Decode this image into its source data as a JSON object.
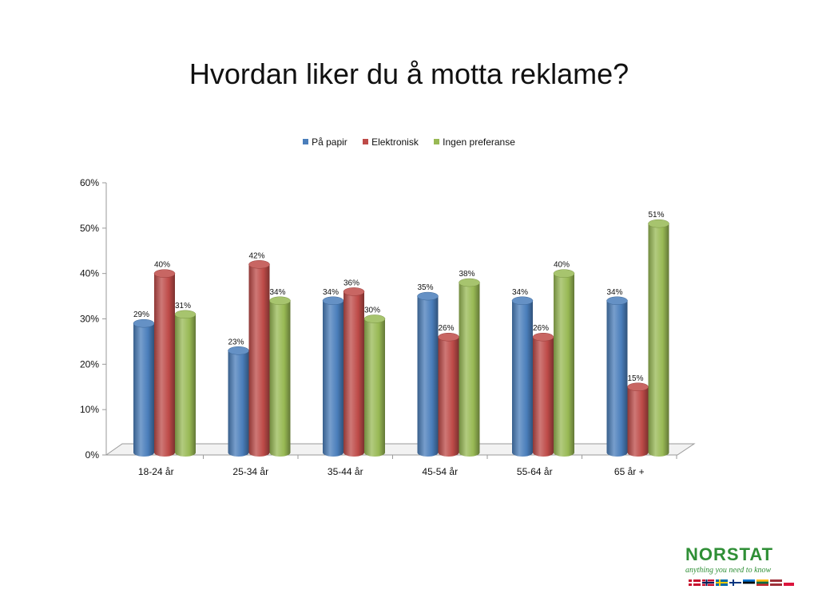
{
  "chart_data": {
    "type": "bar",
    "title": "Hvordan liker du å motta reklame?",
    "categories": [
      "18-24 år",
      "25-34 år",
      "35-44 år",
      "45-54 år",
      "55-64 år",
      "65 år +"
    ],
    "series": [
      {
        "name": "På papir",
        "color": "#4a7ebb",
        "values": [
          29,
          23,
          34,
          35,
          34,
          34
        ],
        "labels": [
          "29%",
          "23%",
          "34%",
          "35%",
          "34%",
          "34%"
        ]
      },
      {
        "name": "Elektronisk",
        "color": "#be4b48",
        "values": [
          40,
          42,
          36,
          26,
          26,
          15
        ],
        "labels": [
          "40%",
          "42%",
          "36%",
          "26%",
          "26%",
          "15%"
        ]
      },
      {
        "name": "Ingen preferanse",
        "color": "#98b954",
        "values": [
          31,
          34,
          30,
          38,
          40,
          51
        ],
        "labels": [
          "31%",
          "34%",
          "30%",
          "38%",
          "40%",
          "51%"
        ]
      }
    ],
    "yaxis": {
      "min": 0,
      "max": 60,
      "ticks": [
        0,
        10,
        20,
        30,
        40,
        50,
        60
      ],
      "tick_labels": [
        "0%",
        "10%",
        "20%",
        "30%",
        "40%",
        "50%",
        "60%"
      ]
    },
    "legend_position": "top",
    "grid": false,
    "style": "3d-cylinder"
  },
  "logo": {
    "name": "NORSTAT",
    "tagline": "anything you need to know"
  }
}
